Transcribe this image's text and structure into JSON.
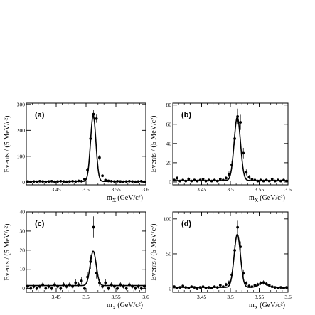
{
  "chart_data": [
    {
      "type": "scatter",
      "panel": "(a)",
      "xlabel": "m_X (GeV/c²)",
      "ylabel": "Events / (5 MeV/c²)",
      "xlim": [
        3.4,
        3.6
      ],
      "ylim": [
        -10,
        305
      ],
      "xticks": [
        "3.45",
        "3.5",
        "3.55",
        "3.6"
      ],
      "yticks": [
        0,
        100,
        200,
        300
      ],
      "fit": {
        "peak": 3.512,
        "amplitude": 255,
        "sigma": 0.0045,
        "background": 3
      },
      "points": [
        [
          3.4025,
          3
        ],
        [
          3.4075,
          2
        ],
        [
          3.4125,
          3
        ],
        [
          3.4175,
          2
        ],
        [
          3.4225,
          4
        ],
        [
          3.4275,
          3
        ],
        [
          3.4325,
          2
        ],
        [
          3.4375,
          3
        ],
        [
          3.4425,
          4
        ],
        [
          3.4475,
          2
        ],
        [
          3.4525,
          3
        ],
        [
          3.4575,
          4
        ],
        [
          3.4625,
          3
        ],
        [
          3.4675,
          2
        ],
        [
          3.4725,
          3
        ],
        [
          3.4775,
          4
        ],
        [
          3.4825,
          3
        ],
        [
          3.4875,
          5
        ],
        [
          3.4925,
          4
        ],
        [
          3.4975,
          12
        ],
        [
          3.5025,
          48
        ],
        [
          3.5075,
          168
        ],
        [
          3.5125,
          262
        ],
        [
          3.5175,
          245
        ],
        [
          3.5225,
          95
        ],
        [
          3.5275,
          25
        ],
        [
          3.5325,
          8
        ],
        [
          3.5375,
          5
        ],
        [
          3.5425,
          4
        ],
        [
          3.5475,
          3
        ],
        [
          3.5525,
          4
        ],
        [
          3.5575,
          3
        ],
        [
          3.5625,
          2
        ],
        [
          3.5675,
          3
        ],
        [
          3.5725,
          4
        ],
        [
          3.5775,
          3
        ],
        [
          3.5825,
          2
        ],
        [
          3.5875,
          3
        ],
        [
          3.5925,
          4
        ],
        [
          3.5975,
          2
        ]
      ]
    },
    {
      "type": "scatter",
      "panel": "(b)",
      "xlabel": "m_X (GeV/c²)",
      "ylabel": "Events / (5 MeV/c²)",
      "xlim": [
        3.4,
        3.6
      ],
      "ylim": [
        -3,
        82
      ],
      "xticks": [
        "3.45",
        "3.5",
        "3.55",
        "3.6"
      ],
      "yticks": [
        0,
        20,
        40,
        60,
        80
      ],
      "fit": {
        "peak": 3.512,
        "amplitude": 66,
        "sigma": 0.0055,
        "background": 1.5
      },
      "points": [
        [
          3.4025,
          2
        ],
        [
          3.4075,
          4
        ],
        [
          3.4125,
          1
        ],
        [
          3.4175,
          2
        ],
        [
          3.4225,
          1
        ],
        [
          3.4275,
          3
        ],
        [
          3.4325,
          1
        ],
        [
          3.4375,
          2
        ],
        [
          3.4425,
          1
        ],
        [
          3.4475,
          2
        ],
        [
          3.4525,
          3
        ],
        [
          3.4575,
          1
        ],
        [
          3.4625,
          2
        ],
        [
          3.4675,
          1
        ],
        [
          3.4725,
          2
        ],
        [
          3.4775,
          1
        ],
        [
          3.4825,
          3
        ],
        [
          3.4875,
          2
        ],
        [
          3.4925,
          4
        ],
        [
          3.4975,
          8
        ],
        [
          3.5025,
          18
        ],
        [
          3.5075,
          45
        ],
        [
          3.5125,
          68
        ],
        [
          3.5175,
          62
        ],
        [
          3.5225,
          30
        ],
        [
          3.5275,
          10
        ],
        [
          3.5325,
          5
        ],
        [
          3.5375,
          3
        ],
        [
          3.5425,
          2
        ],
        [
          3.5475,
          1
        ],
        [
          3.5525,
          2
        ],
        [
          3.5575,
          1
        ],
        [
          3.5625,
          2
        ],
        [
          3.5675,
          1
        ],
        [
          3.5725,
          3
        ],
        [
          3.5775,
          1
        ],
        [
          3.5825,
          2
        ],
        [
          3.5875,
          1
        ],
        [
          3.5925,
          2
        ],
        [
          3.5975,
          1
        ]
      ]
    },
    {
      "type": "scatter",
      "panel": "(c)",
      "xlabel": "m_X (GeV/c²)",
      "ylabel": "Events / (5 MeV/c²)",
      "xlim": [
        3.4,
        3.6
      ],
      "ylim": [
        -2,
        40
      ],
      "xticks": [
        "3.45",
        "3.5",
        "3.55",
        "3.6"
      ],
      "yticks": [
        0,
        10,
        20,
        30,
        40
      ],
      "fit": {
        "peak": 3.512,
        "amplitude": 18,
        "sigma": 0.005,
        "background": 1.5
      },
      "points": [
        [
          3.4025,
          1
        ],
        [
          3.4075,
          0
        ],
        [
          3.4125,
          1
        ],
        [
          3.4175,
          0
        ],
        [
          3.4225,
          1
        ],
        [
          3.4275,
          2
        ],
        [
          3.4325,
          0
        ],
        [
          3.4375,
          1
        ],
        [
          3.4425,
          0
        ],
        [
          3.4475,
          2
        ],
        [
          3.4525,
          1
        ],
        [
          3.4575,
          0
        ],
        [
          3.4625,
          2
        ],
        [
          3.4675,
          1
        ],
        [
          3.4725,
          2
        ],
        [
          3.4775,
          1
        ],
        [
          3.4825,
          3
        ],
        [
          3.4875,
          2
        ],
        [
          3.4925,
          4
        ],
        [
          3.4975,
          0
        ],
        [
          3.5025,
          6
        ],
        [
          3.5075,
          14
        ],
        [
          3.5125,
          32
        ],
        [
          3.5175,
          8
        ],
        [
          3.5225,
          3
        ],
        [
          3.5275,
          1
        ],
        [
          3.5325,
          3
        ],
        [
          3.5375,
          0
        ],
        [
          3.5425,
          2
        ],
        [
          3.5475,
          1
        ],
        [
          3.5525,
          0
        ],
        [
          3.5575,
          2
        ],
        [
          3.5625,
          1
        ],
        [
          3.5675,
          0
        ],
        [
          3.5725,
          2
        ],
        [
          3.5775,
          1
        ],
        [
          3.5825,
          0
        ],
        [
          3.5875,
          1
        ],
        [
          3.5925,
          0
        ],
        [
          3.5975,
          1
        ]
      ]
    },
    {
      "type": "scatter",
      "panel": "(d)",
      "xlabel": "m_X (GeV/c²)",
      "ylabel": "Events / (5 MeV/c²)",
      "xlim": [
        3.4,
        3.6
      ],
      "ylim": [
        -5,
        110
      ],
      "xticks": [
        "3.45",
        "3.5",
        "3.55",
        "3.6"
      ],
      "yticks": [
        0,
        50,
        100
      ],
      "fit": {
        "peak": 3.512,
        "amplitude": 76,
        "sigma": 0.0055,
        "background": 2,
        "bump": {
          "center": 3.556,
          "amplitude": 7,
          "sigma": 0.007
        }
      },
      "points": [
        [
          3.4025,
          3
        ],
        [
          3.4075,
          1
        ],
        [
          3.4125,
          2
        ],
        [
          3.4175,
          4
        ],
        [
          3.4225,
          2
        ],
        [
          3.4275,
          1
        ],
        [
          3.4325,
          3
        ],
        [
          3.4375,
          2
        ],
        [
          3.4425,
          0
        ],
        [
          3.4475,
          2
        ],
        [
          3.4525,
          3
        ],
        [
          3.4575,
          1
        ],
        [
          3.4625,
          2
        ],
        [
          3.4675,
          1
        ],
        [
          3.4725,
          3
        ],
        [
          3.4775,
          2
        ],
        [
          3.4825,
          5
        ],
        [
          3.4875,
          3
        ],
        [
          3.4925,
          6
        ],
        [
          3.4975,
          9
        ],
        [
          3.5025,
          20
        ],
        [
          3.5075,
          55
        ],
        [
          3.5125,
          88
        ],
        [
          3.5175,
          60
        ],
        [
          3.5225,
          22
        ],
        [
          3.5275,
          8
        ],
        [
          3.5325,
          4
        ],
        [
          3.5375,
          3
        ],
        [
          3.5425,
          5
        ],
        [
          3.5475,
          6
        ],
        [
          3.5525,
          8
        ],
        [
          3.5575,
          9
        ],
        [
          3.5625,
          7
        ],
        [
          3.5675,
          5
        ],
        [
          3.5725,
          3
        ],
        [
          3.5775,
          2
        ],
        [
          3.5825,
          1
        ],
        [
          3.5875,
          2
        ],
        [
          3.5925,
          1
        ],
        [
          3.5975,
          2
        ]
      ]
    }
  ]
}
